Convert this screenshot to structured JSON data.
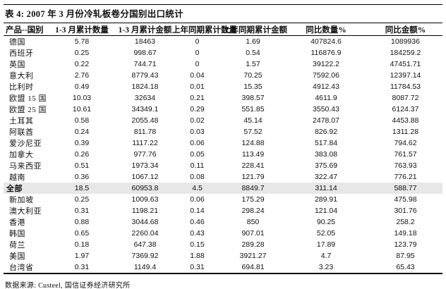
{
  "title": "表 4: 2007 年 3 月份冷轧板卷分国别出口统计",
  "footer": "数据来源: Custeel, 国信证券经济研究所",
  "colors": {
    "rule": "#000000",
    "text": "#111111",
    "total_row_bg": "#e7e7e7"
  },
  "table": {
    "columns": [
      "产品--国别",
      "1-3 月累计数量",
      "1-3 月累计金额",
      "上年同期累计数量",
      "上年同期累计金额",
      "同比数量%",
      "同比金额%"
    ],
    "rows": [
      {
        "country": "德国",
        "cells": [
          "5.78",
          "18463",
          "0",
          "1.69",
          "407824.6",
          "1089936"
        ],
        "highlight": false
      },
      {
        "country": "西班牙",
        "cells": [
          "0.25",
          "998.67",
          "0",
          "0.54",
          "116876.9",
          "184259.2"
        ],
        "highlight": false
      },
      {
        "country": "英国",
        "cells": [
          "0.22",
          "744.71",
          "0",
          "1.57",
          "39122.2",
          "47451.71"
        ],
        "highlight": false
      },
      {
        "country": "意大利",
        "cells": [
          "2.76",
          "8779.43",
          "0.04",
          "70.25",
          "7592.06",
          "12397.14"
        ],
        "highlight": false
      },
      {
        "country": "比利时",
        "cells": [
          "0.49",
          "1824.18",
          "0.01",
          "15.35",
          "4912.43",
          "11784.53"
        ],
        "highlight": false
      },
      {
        "country": "欧盟 15 国",
        "cells": [
          "10.03",
          "32634",
          "0.21",
          "398.57",
          "4611.9",
          "8087.72"
        ],
        "highlight": false
      },
      {
        "country": "欧盟 25 国",
        "cells": [
          "10.61",
          "34349.1",
          "0.29",
          "551.85",
          "3550.43",
          "6124.37"
        ],
        "highlight": false
      },
      {
        "country": "土耳其",
        "cells": [
          "0.58",
          "2055.48",
          "0.02",
          "45.14",
          "2478.07",
          "4453.88"
        ],
        "highlight": false
      },
      {
        "country": "阿联酋",
        "cells": [
          "0.24",
          "811.78",
          "0.03",
          "57.52",
          "826.92",
          "1311.28"
        ],
        "highlight": false
      },
      {
        "country": "爱沙尼亚",
        "cells": [
          "0.39",
          "1117.22",
          "0.06",
          "124.88",
          "517.84",
          "794.62"
        ],
        "highlight": false
      },
      {
        "country": "加拿大",
        "cells": [
          "0.26",
          "977.76",
          "0.05",
          "113.49",
          "383.08",
          "761.57"
        ],
        "highlight": false
      },
      {
        "country": "马来西亚",
        "cells": [
          "0.51",
          "1973.34",
          "0.11",
          "228.41",
          "375.69",
          "763.93"
        ],
        "highlight": false
      },
      {
        "country": "越南",
        "cells": [
          "0.36",
          "1067.12",
          "0.08",
          "121.79",
          "322.47",
          "776.21"
        ],
        "highlight": false
      },
      {
        "country": "全部",
        "cells": [
          "18.5",
          "60953.8",
          "4.5",
          "8849.7",
          "311.14",
          "588.77"
        ],
        "highlight": true
      },
      {
        "country": "新加坡",
        "cells": [
          "0.25",
          "1009.63",
          "0.06",
          "175.29",
          "289.91",
          "475.98"
        ],
        "highlight": false
      },
      {
        "country": "澳大利亚",
        "cells": [
          "0.31",
          "1198.21",
          "0.14",
          "298.24",
          "121.04",
          "301.76"
        ],
        "highlight": false
      },
      {
        "country": "香港",
        "cells": [
          "0.88",
          "3044.68",
          "0.46",
          "850",
          "90.25",
          "258.2"
        ],
        "highlight": false
      },
      {
        "country": "韩国",
        "cells": [
          "0.65",
          "2260.04",
          "0.43",
          "907.01",
          "52.05",
          "149.18"
        ],
        "highlight": false
      },
      {
        "country": "荷兰",
        "cells": [
          "0.18",
          "647.38",
          "0.15",
          "289.28",
          "17.89",
          "123.79"
        ],
        "highlight": false
      },
      {
        "country": "美国",
        "cells": [
          "1.97",
          "7369.92",
          "1.88",
          "3921.27",
          "4.7",
          "87.95"
        ],
        "highlight": false
      },
      {
        "country": "台湾省",
        "cells": [
          "0.31",
          "1149.4",
          "0.31",
          "694.81",
          "3.23",
          "65.43"
        ],
        "highlight": false
      }
    ]
  }
}
